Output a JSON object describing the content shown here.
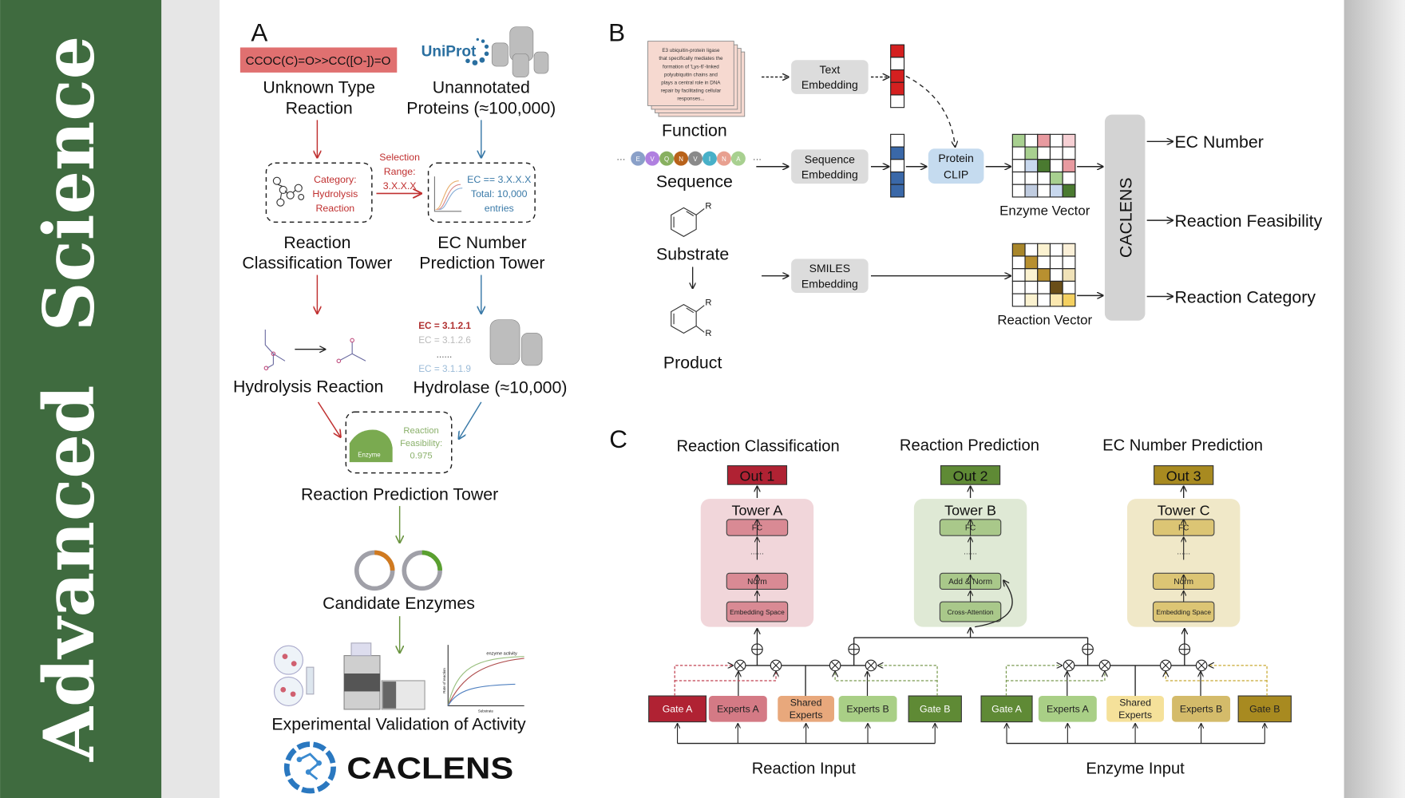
{
  "sidebar": {
    "word1": "Advanced",
    "word2": "Science",
    "color": "#3f6b3f"
  },
  "panel_a": {
    "label": "A",
    "smiles": "CCOC(C)=O>>CC([O-])=O",
    "unknown": [
      "Unknown Type",
      "Reaction"
    ],
    "uniprot_logo": "UniProt",
    "unannotated": [
      "Unannotated",
      "Proteins (≈100,000)"
    ],
    "category": [
      "Category:",
      "Hydrolysis",
      "Reaction"
    ],
    "selection": [
      "Selection",
      "Range:",
      "3.X.X.X"
    ],
    "ec_filter": [
      "EC == 3.X.X.X",
      "Total: 10,000",
      "entries"
    ],
    "rct": [
      "Reaction",
      "Classification Tower"
    ],
    "ecpt": [
      "EC Number",
      "Prediction Tower"
    ],
    "hydrolysis": "Hydrolysis Reaction",
    "ec_list": [
      "EC = 3.1.2.1",
      "EC = 3.1.2.6",
      "......",
      "EC = 3.1.1.9"
    ],
    "hydrolase": "Hydrolase (≈10,000)",
    "enzyme_label": "Enzyme",
    "feasibility": [
      "Reaction",
      "Feasibility:",
      "0.975"
    ],
    "rpt": "Reaction Prediction Tower",
    "candidates": "Candidate Enzymes",
    "plot_title": "enzyme activity",
    "plot_y": "Rate of reaction",
    "plot_x": "Substrate",
    "validation": "Experimental Validation of Activity",
    "logo": "CACLENS"
  },
  "panel_b": {
    "label": "B",
    "doc_text": [
      "E3 ubiquitin-protein ligase",
      "that specifically mediates the",
      "formation of 'Lys-6'-linked",
      "polyubiquitin chains and",
      "plays a central role in DNA",
      "repair by facilitating cellular",
      "responses..."
    ],
    "function": "Function",
    "sequence_letters": [
      "E",
      "V",
      "Q",
      "N",
      "V",
      "I",
      "N",
      "A"
    ],
    "sequence": "Sequence",
    "substrate": "Substrate",
    "product": "Product",
    "r_label": "R",
    "text_emb": [
      "Text",
      "Embedding"
    ],
    "seq_emb": [
      "Sequence",
      "Embedding"
    ],
    "smiles_emb": [
      "SMILES",
      "Embedding"
    ],
    "clip": [
      "Protein",
      "CLIP"
    ],
    "enzyme_vector": "Enzyme Vector",
    "reaction_vector": "Reaction Vector",
    "caclens": "CACLENS",
    "outputs": [
      "EC Number",
      "Reaction Feasibility",
      "Reaction Category"
    ]
  },
  "panel_c": {
    "label": "C",
    "tasks": [
      "Reaction Classification",
      "Reaction Prediction",
      "EC Number Prediction"
    ],
    "outs": [
      "Out 1",
      "Out 2",
      "Out 3"
    ],
    "towers": [
      {
        "name": "Tower A",
        "layers": [
          "FC",
          "......",
          "Norm",
          "Embedding Space"
        ]
      },
      {
        "name": "Tower B",
        "layers": [
          "FC",
          "......",
          "Add & Norm",
          "Cross-Attention"
        ]
      },
      {
        "name": "Tower C",
        "layers": [
          "FC",
          "......",
          "Norm",
          "Embedding Space"
        ]
      }
    ],
    "left_modules": [
      "Gate A",
      "Experts A",
      "Shared Experts",
      "Experts B",
      "Gate B"
    ],
    "right_modules": [
      "Gate A",
      "Experts A",
      "Shared Experts",
      "Experts B",
      "Gate B"
    ],
    "reaction_input": "Reaction Input",
    "enzyme_input": "Enzyme Input",
    "colors": {
      "out1": "#b02233",
      "out2": "#5f8a35",
      "out3": "#a88a20"
    }
  }
}
